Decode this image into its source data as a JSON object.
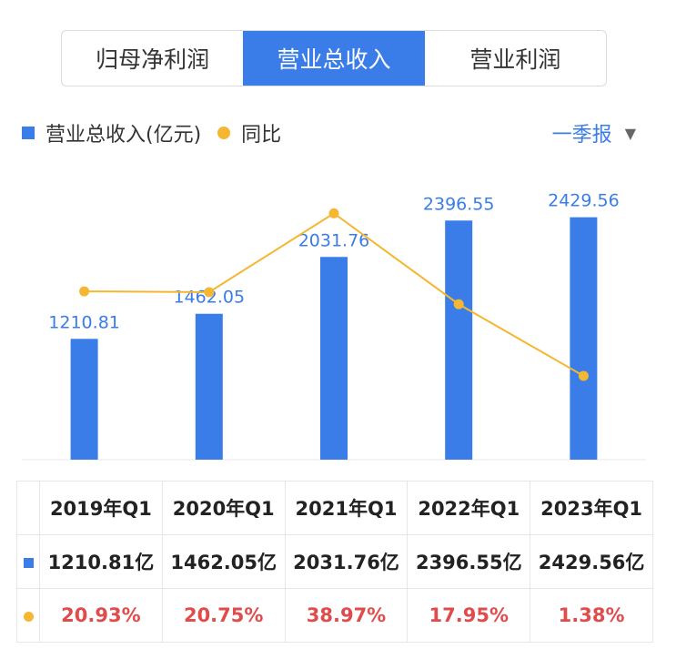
{
  "tabs": [
    {
      "label": "归母净利润",
      "active": false
    },
    {
      "label": "营业总收入",
      "active": true
    },
    {
      "label": "营业利润",
      "active": false
    }
  ],
  "legend": {
    "bar_label": "营业总收入(亿元)",
    "line_label": "同比"
  },
  "period_selector": {
    "label": "一季报"
  },
  "colors": {
    "bar": "#3a7de8",
    "line": "#f5b731",
    "pct_text": "#e04b4b"
  },
  "chart_data": {
    "type": "bar",
    "categories": [
      "2019年Q1",
      "2020年Q1",
      "2021年Q1",
      "2022年Q1",
      "2023年Q1"
    ],
    "series": [
      {
        "name": "营业总收入(亿元)",
        "type": "bar",
        "values": [
          1210.81,
          1462.05,
          2031.76,
          2396.55,
          2429.56
        ],
        "labels": [
          "1210.81",
          "1462.05",
          "2031.76",
          "2396.55",
          "2429.56"
        ]
      },
      {
        "name": "同比",
        "type": "line",
        "values": [
          20.93,
          20.75,
          38.97,
          17.95,
          1.38
        ]
      }
    ],
    "ylim": [
      0,
      2600
    ]
  },
  "table": {
    "headers": [
      "2019年Q1",
      "2020年Q1",
      "2021年Q1",
      "2022年Q1",
      "2023年Q1"
    ],
    "revenue": [
      "1210.81亿",
      "1462.05亿",
      "2031.76亿",
      "2396.55亿",
      "2429.56亿"
    ],
    "yoy": [
      "20.93%",
      "20.75%",
      "38.97%",
      "17.95%",
      "1.38%"
    ]
  }
}
